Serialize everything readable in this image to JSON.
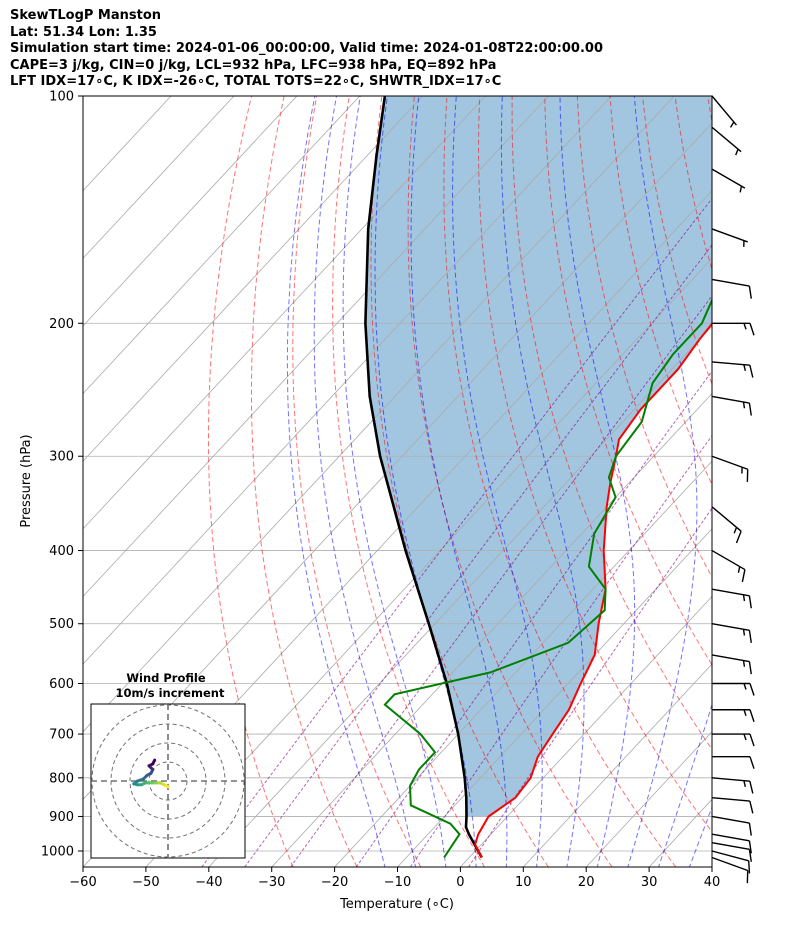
{
  "header": {
    "line1": "SkewTLogP Manston",
    "line2": "Lat: 51.34   Lon: 1.35",
    "line3": "Simulation start time: 2024-01-06_00:00:00, Valid time: 2024-01-08T22:00:00.00",
    "line4": "CAPE=3 j/kg, CIN=0 j/kg, LCL=932 hPa, LFC=938 hPa, EQ=892 hPa",
    "line5": "LFT IDX=17∘C, K IDX=-26∘C, TOTAL TOTS=22∘C, SHWTR_IDX=17∘C"
  },
  "colors": {
    "temperature": "#ff0000",
    "dewpoint": "#008000",
    "parcel": "#000000",
    "cape_fill": "#a3c6e0",
    "dry_adiabat": "#ff0000",
    "moist_adiabat": "#0000ff",
    "mixing_ratio": "#800080",
    "isotherm": "#aaaaaa"
  },
  "chart_data": {
    "type": "skewt",
    "xlabel": "Temperature (∘C)",
    "ylabel": "Pressure (hPa)",
    "xlim": [
      -60,
      40
    ],
    "ylim": [
      1050,
      100
    ],
    "x_ticks": [
      -60,
      -50,
      -40,
      -30,
      -20,
      -10,
      0,
      10,
      20,
      30,
      40
    ],
    "x_tick_labels": [
      "−60",
      "−50",
      "−40",
      "−30",
      "−20",
      "−10",
      "0",
      "10",
      "20",
      "30",
      "40"
    ],
    "y_ticks": [
      1000,
      900,
      800,
      700,
      600,
      500,
      400,
      300,
      200,
      100
    ],
    "grid": true,
    "temperature": [
      {
        "p": 1020,
        "t": 2
      },
      {
        "p": 980,
        "t": -1
      },
      {
        "p": 950,
        "t": -2
      },
      {
        "p": 900,
        "t": -3
      },
      {
        "p": 850,
        "t": -1.5
      },
      {
        "p": 800,
        "t": -2
      },
      {
        "p": 750,
        "t": -4
      },
      {
        "p": 700,
        "t": -5
      },
      {
        "p": 650,
        "t": -6
      },
      {
        "p": 600,
        "t": -8
      },
      {
        "p": 550,
        "t": -10
      },
      {
        "p": 500,
        "t": -14
      },
      {
        "p": 450,
        "t": -18
      },
      {
        "p": 400,
        "t": -24
      },
      {
        "p": 350,
        "t": -30
      },
      {
        "p": 325,
        "t": -33
      },
      {
        "p": 300,
        "t": -36
      },
      {
        "p": 285,
        "t": -38
      },
      {
        "p": 260,
        "t": -39
      },
      {
        "p": 230,
        "t": -39
      },
      {
        "p": 210,
        "t": -40
      },
      {
        "p": 180,
        "t": -41
      },
      {
        "p": 160,
        "t": -43
      },
      {
        "p": 140,
        "t": -44
      },
      {
        "p": 120,
        "t": -46
      },
      {
        "p": 100,
        "t": -49
      }
    ],
    "dewpoint": [
      {
        "p": 1020,
        "t": -4
      },
      {
        "p": 950,
        "t": -5
      },
      {
        "p": 920,
        "t": -8
      },
      {
        "p": 870,
        "t": -17
      },
      {
        "p": 820,
        "t": -20
      },
      {
        "p": 780,
        "t": -21
      },
      {
        "p": 740,
        "t": -21
      },
      {
        "p": 700,
        "t": -26
      },
      {
        "p": 640,
        "t": -36
      },
      {
        "p": 620,
        "t": -36
      },
      {
        "p": 580,
        "t": -24
      },
      {
        "p": 530,
        "t": -16
      },
      {
        "p": 480,
        "t": -15
      },
      {
        "p": 450,
        "t": -18
      },
      {
        "p": 420,
        "t": -24
      },
      {
        "p": 380,
        "t": -28
      },
      {
        "p": 340,
        "t": -30
      },
      {
        "p": 320,
        "t": -34
      },
      {
        "p": 300,
        "t": -36
      },
      {
        "p": 270,
        "t": -37
      },
      {
        "p": 240,
        "t": -41
      },
      {
        "p": 220,
        "t": -42
      },
      {
        "p": 200,
        "t": -42
      },
      {
        "p": 185,
        "t": -44
      },
      {
        "p": 150,
        "t": -44
      },
      {
        "p": 130,
        "t": -46
      },
      {
        "p": 115,
        "t": -48
      },
      {
        "p": 100,
        "t": -50
      }
    ],
    "parcel_profile": [
      {
        "p": 1020,
        "t": 2
      },
      {
        "p": 950,
        "t": -3.5
      },
      {
        "p": 930,
        "t": -5
      },
      {
        "p": 900,
        "t": -6.5
      },
      {
        "p": 850,
        "t": -9.3
      },
      {
        "p": 800,
        "t": -12.5
      },
      {
        "p": 700,
        "t": -20
      },
      {
        "p": 600,
        "t": -29.3
      },
      {
        "p": 500,
        "t": -41
      },
      {
        "p": 400,
        "t": -55.5
      },
      {
        "p": 300,
        "t": -73.5
      },
      {
        "p": 250,
        "t": -84
      },
      {
        "p": 200,
        "t": -95.5
      },
      {
        "p": 150,
        "t": -109
      },
      {
        "p": 120,
        "t": -118.5
      },
      {
        "p": 100,
        "t": -126
      }
    ],
    "dry_adiabats_c": [
      -30,
      -20,
      -10,
      0,
      10,
      20,
      30,
      40,
      50,
      60,
      70,
      80,
      90,
      100,
      110,
      120,
      130,
      140,
      150,
      160,
      170,
      180,
      190,
      200
    ],
    "moist_adiabats_c": [
      -15,
      -10,
      -5,
      0,
      5,
      10,
      15,
      20,
      25,
      30,
      35
    ],
    "mixing_ratios_gkg": [
      0.1,
      0.2,
      0.4,
      1,
      2,
      4
    ],
    "wind_barbs": [
      {
        "p": 1020,
        "speed_kt": 10,
        "dir": 110
      },
      {
        "p": 1000,
        "speed_kt": 10,
        "dir": 105
      },
      {
        "p": 975,
        "speed_kt": 10,
        "dir": 100
      },
      {
        "p": 950,
        "speed_kt": 10,
        "dir": 100
      },
      {
        "p": 900,
        "speed_kt": 10,
        "dir": 100
      },
      {
        "p": 850,
        "speed_kt": 10,
        "dir": 95
      },
      {
        "p": 800,
        "speed_kt": 15,
        "dir": 95
      },
      {
        "p": 750,
        "speed_kt": 10,
        "dir": 90
      },
      {
        "p": 700,
        "speed_kt": 15,
        "dir": 90
      },
      {
        "p": 650,
        "speed_kt": 15,
        "dir": 90
      },
      {
        "p": 600,
        "speed_kt": 15,
        "dir": 90
      },
      {
        "p": 550,
        "speed_kt": 15,
        "dir": 100
      },
      {
        "p": 500,
        "speed_kt": 15,
        "dir": 100
      },
      {
        "p": 450,
        "speed_kt": 15,
        "dir": 100
      },
      {
        "p": 400,
        "speed_kt": 15,
        "dir": 120
      },
      {
        "p": 350,
        "speed_kt": 15,
        "dir": 130
      },
      {
        "p": 300,
        "speed_kt": 15,
        "dir": 110
      },
      {
        "p": 250,
        "speed_kt": 15,
        "dir": 100
      },
      {
        "p": 225,
        "speed_kt": 15,
        "dir": 95
      },
      {
        "p": 200,
        "speed_kt": 15,
        "dir": 90
      },
      {
        "p": 175,
        "speed_kt": 10,
        "dir": 100
      },
      {
        "p": 150,
        "speed_kt": 5,
        "dir": 110
      },
      {
        "p": 125,
        "speed_kt": 5,
        "dir": 120
      },
      {
        "p": 110,
        "speed_kt": 5,
        "dir": 130
      },
      {
        "p": 100,
        "speed_kt": 5,
        "dir": 140
      }
    ],
    "hodograph": {
      "title_line1": "Wind Profile",
      "title_line2": "10m/s increment",
      "rings_ms": [
        10,
        20,
        30,
        40
      ],
      "points_ms": [
        {
          "u": 0,
          "v": -3
        },
        {
          "u": -2,
          "v": -2
        },
        {
          "u": -4,
          "v": -1
        },
        {
          "u": -6,
          "v": -1
        },
        {
          "u": -8,
          "v": -1
        },
        {
          "u": -10,
          "v": -1
        },
        {
          "u": -12,
          "v": -1
        },
        {
          "u": -14,
          "v": -2
        },
        {
          "u": -16,
          "v": -2
        },
        {
          "u": -18,
          "v": -1.5
        },
        {
          "u": -16,
          "v": 0
        },
        {
          "u": -13,
          "v": 1
        },
        {
          "u": -11,
          "v": 3
        },
        {
          "u": -9,
          "v": 4
        },
        {
          "u": -8,
          "v": 6
        },
        {
          "u": -9,
          "v": 7
        },
        {
          "u": -10,
          "v": 8
        },
        {
          "u": -8,
          "v": 9
        },
        {
          "u": -7,
          "v": 11
        }
      ]
    }
  }
}
